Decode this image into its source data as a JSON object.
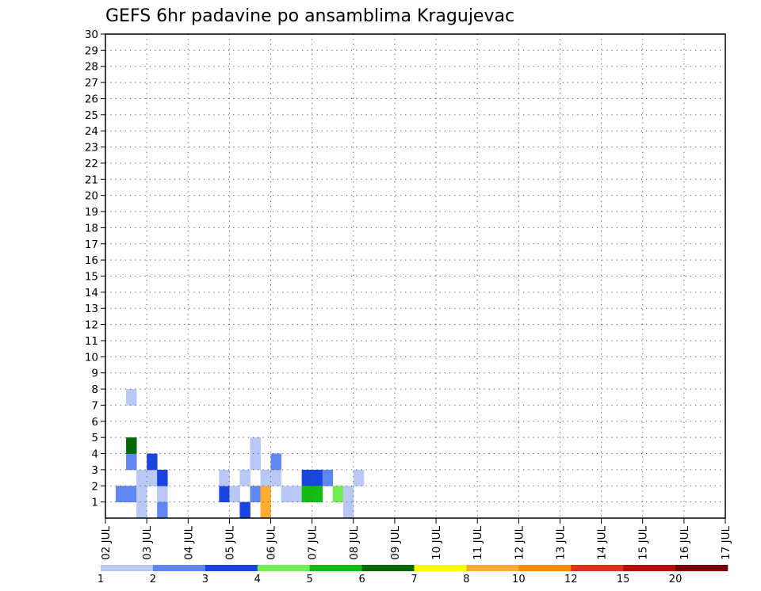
{
  "chart_data": {
    "type": "heatmap",
    "title": "GEFS 6hr padavine po ansamblima Kragujevac",
    "xlabel": "",
    "ylabel": "",
    "x_tick_labels": [
      "02 JUL",
      "03 JUL",
      "04 JUL",
      "05 JUL",
      "06 JUL",
      "07 JUL",
      "08 JUL",
      "09 JUL",
      "10 JUL",
      "11 JUL",
      "12 JUL",
      "13 JUL",
      "14 JUL",
      "15 JUL",
      "16 JUL",
      "17 JUL"
    ],
    "y_tick_labels": [
      "1",
      "2",
      "3",
      "4",
      "5",
      "6",
      "7",
      "8",
      "9",
      "10",
      "11",
      "12",
      "13",
      "14",
      "15",
      "16",
      "17",
      "18",
      "19",
      "20",
      "21",
      "22",
      "23",
      "24",
      "25",
      "26",
      "27",
      "28",
      "29",
      "30"
    ],
    "xlim": [
      0,
      15
    ],
    "ylim": [
      0,
      30
    ],
    "grid": true,
    "colorbar": {
      "labels": [
        "1",
        "2",
        "3",
        "4",
        "5",
        "6",
        "7",
        "8",
        "10",
        "12",
        "15",
        "20"
      ],
      "colors": [
        "#b9c8f4",
        "#5f87ef",
        "#1a44df",
        "#73ec55",
        "#13be13",
        "#056a05",
        "#fefe00",
        "#feac34",
        "#fe8c00",
        "#e03219",
        "#b80d0d",
        "#780000"
      ]
    },
    "cells": [
      [
        0.25,
        1,
        1
      ],
      [
        0.5,
        1,
        1
      ],
      [
        0.5,
        3,
        1
      ],
      [
        0.5,
        4,
        5
      ],
      [
        0.5,
        7,
        0
      ],
      [
        0.75,
        0,
        0
      ],
      [
        0.75,
        1,
        0
      ],
      [
        0.75,
        2,
        0
      ],
      [
        1.0,
        2,
        0
      ],
      [
        1.25,
        1,
        0
      ],
      [
        1.25,
        2,
        2
      ],
      [
        1.0,
        3,
        2
      ],
      [
        1.25,
        0,
        1
      ],
      [
        2.75,
        1,
        2
      ],
      [
        2.75,
        2,
        0
      ],
      [
        3.0,
        1,
        0
      ],
      [
        3.25,
        2,
        0
      ],
      [
        3.25,
        0,
        2
      ],
      [
        3.5,
        1,
        1
      ],
      [
        3.5,
        3,
        0
      ],
      [
        3.5,
        4,
        0
      ],
      [
        3.75,
        1,
        7
      ],
      [
        3.75,
        0,
        7
      ],
      [
        3.75,
        2,
        0
      ],
      [
        4.0,
        2,
        0
      ],
      [
        4.0,
        3,
        1
      ],
      [
        4.25,
        1,
        0
      ],
      [
        4.5,
        1,
        0
      ],
      [
        4.75,
        2,
        2
      ],
      [
        4.75,
        1,
        4
      ],
      [
        5.0,
        2,
        2
      ],
      [
        5.0,
        1,
        4
      ],
      [
        5.25,
        2,
        1
      ],
      [
        5.5,
        1,
        3
      ],
      [
        5.75,
        1,
        0
      ],
      [
        5.75,
        0,
        0
      ],
      [
        6.0,
        2,
        0
      ]
    ]
  }
}
